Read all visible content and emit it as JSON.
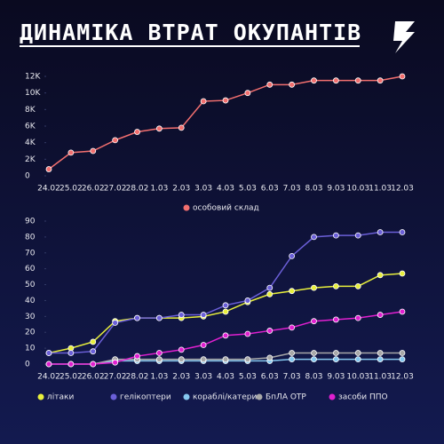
{
  "title": "ДИНАМІКА ВТРАТ ОКУПАНТІВ",
  "chart_data": [
    {
      "type": "line",
      "categories": [
        "24.02",
        "25.02",
        "26.02",
        "27.02",
        "28.02",
        "1.03",
        "2.03",
        "3.03",
        "4.03",
        "5.03",
        "6.03",
        "7.03",
        "8.03",
        "9.03",
        "10.03",
        "11.03",
        "12.03"
      ],
      "series": [
        {
          "name": "особовий склад",
          "color": "#f26f6f",
          "values": [
            800,
            2800,
            3000,
            4300,
            5300,
            5700,
            5800,
            9000,
            9100,
            10000,
            11000,
            11000,
            11500,
            11500,
            11500,
            11500,
            12000
          ]
        }
      ],
      "ylim": [
        0,
        12000
      ],
      "yticks": [
        0,
        {
          "value": 2000,
          "label": "2K"
        },
        {
          "value": 4000,
          "label": "4K"
        },
        {
          "value": 6000,
          "label": "6K"
        },
        {
          "value": 8000,
          "label": "8K"
        },
        {
          "value": 10000,
          "label": "10K"
        },
        {
          "value": 12000,
          "label": "12K"
        }
      ],
      "legend": "bottom"
    },
    {
      "type": "line",
      "categories": [
        "24.02",
        "25.02",
        "26.02",
        "27.02",
        "28.02",
        "1.03",
        "2.03",
        "3.03",
        "4.03",
        "5.03",
        "6.03",
        "7.03",
        "8.03",
        "9.03",
        "10.03",
        "11.03",
        "12.03"
      ],
      "series": [
        {
          "name": "літаки",
          "color": "#e8ef3c",
          "values": [
            7,
            10,
            14,
            27,
            29,
            29,
            29,
            30,
            33,
            39,
            44,
            46,
            48,
            49,
            49,
            56,
            57
          ]
        },
        {
          "name": "гелікоптери",
          "color": "#6b5fd8",
          "values": [
            7,
            7,
            8,
            26,
            29,
            29,
            31,
            31,
            37,
            40,
            48,
            68,
            80,
            81,
            81,
            83,
            83
          ]
        },
        {
          "name": "кораблі/катери",
          "color": "#86c8f0",
          "values": [
            0,
            0,
            0,
            2,
            2,
            2,
            2,
            2,
            2,
            2,
            2,
            3,
            3,
            3,
            3,
            3,
            3
          ]
        },
        {
          "name": "БпЛА ОТР",
          "color": "#a8a8a8",
          "values": [
            0,
            0,
            0,
            3,
            3,
            3,
            3,
            3,
            3,
            3,
            4,
            7,
            7,
            7,
            7,
            7,
            7
          ]
        },
        {
          "name": "засоби ППО",
          "color": "#e020d0",
          "values": [
            0,
            0,
            0,
            1,
            5,
            7,
            9,
            12,
            18,
            19,
            21,
            23,
            27,
            28,
            29,
            31,
            33
          ]
        }
      ],
      "ylim": [
        0,
        90
      ],
      "yticks": [
        0,
        10,
        20,
        30,
        40,
        50,
        60,
        70,
        80,
        90
      ],
      "legend": "bottom"
    }
  ]
}
